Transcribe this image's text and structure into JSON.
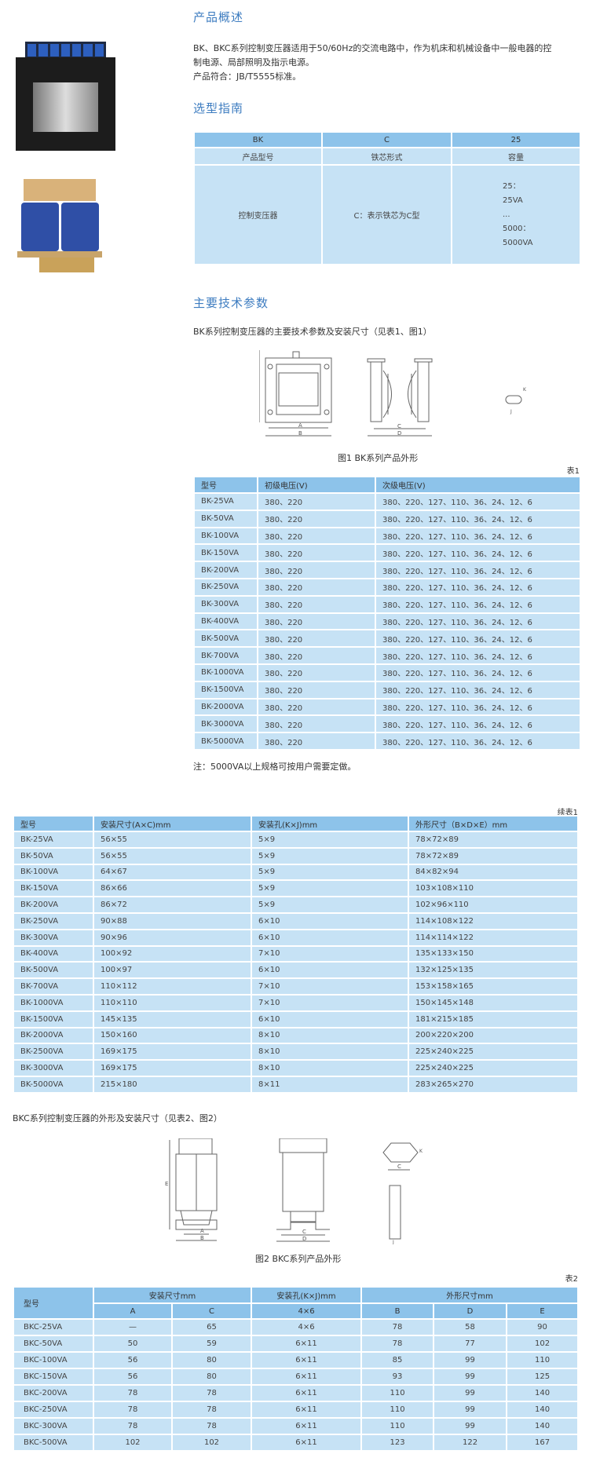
{
  "overview": {
    "title": "产品概述",
    "lines": [
      "BK、BKC系列控制变压器适用于50/60Hz的交流电路中，作为机床和机械设备中一般电器的控",
      "制电源、局部照明及指示电源。",
      "产品符合：JB/T5555标准。"
    ]
  },
  "selection": {
    "title": "选型指南",
    "codes": [
      "BK",
      "C",
      "25"
    ],
    "labels": [
      "产品型号",
      "铁芯形式",
      "容量"
    ],
    "desc": [
      "控制变压器",
      "C：表示铁芯为C型"
    ],
    "capacity": [
      "25：",
      "25VA",
      "...",
      "5000：",
      "5000VA"
    ]
  },
  "params": {
    "title": "主要技术参数",
    "subtitle": "BK系列控制变压器的主要技术参数及安装尺寸（见表1、图1）",
    "fig_caption": "图1  BK系列产品外形",
    "fig_labels": [
      "A",
      "B",
      "C",
      "D",
      "E",
      "K",
      "J"
    ]
  },
  "table1": {
    "label": "表1",
    "headers": [
      "型号",
      "初级电压(V)",
      "次级电压(V)"
    ],
    "rows": [
      [
        "BK-25VA",
        "380、220",
        "380、220、127、110、36、24、12、6"
      ],
      [
        "BK-50VA",
        "380、220",
        "380、220、127、110、36、24、12、6"
      ],
      [
        "BK-100VA",
        "380、220",
        "380、220、127、110、36、24、12、6"
      ],
      [
        "BK-150VA",
        "380、220",
        "380、220、127、110、36、24、12、6"
      ],
      [
        "BK-200VA",
        "380、220",
        "380、220、127、110、36、24、12、6"
      ],
      [
        "BK-250VA",
        "380、220",
        "380、220、127、110、36、24、12、6"
      ],
      [
        "BK-300VA",
        "380、220",
        "380、220、127、110、36、24、12、6"
      ],
      [
        "BK-400VA",
        "380、220",
        "380、220、127、110、36、24、12、6"
      ],
      [
        "BK-500VA",
        "380、220",
        "380、220、127、110、36、24、12、6"
      ],
      [
        "BK-700VA",
        "380、220",
        "380、220、127、110、36、24、12、6"
      ],
      [
        "BK-1000VA",
        "380、220",
        "380、220、127、110、36、24、12、6"
      ],
      [
        "BK-1500VA",
        "380、220",
        "380、220、127、110、36、24、12、6"
      ],
      [
        "BK-2000VA",
        "380、220",
        "380、220、127、110、36、24、12、6"
      ],
      [
        "BK-3000VA",
        "380、220",
        "380、220、127、110、36、24、12、6"
      ],
      [
        "BK-5000VA",
        "380、220",
        "380、220、127、110、36、24、12、6"
      ]
    ],
    "note": "注：5000VA以上规格可按用户需要定做。"
  },
  "table1b": {
    "label": "续表1",
    "headers": [
      "型号",
      "安装尺寸(A×C)mm",
      "安装孔(K×J)mm",
      "外形尺寸（B×D×E）mm"
    ],
    "rows": [
      [
        "BK-25VA",
        "56×55",
        "5×9",
        "78×72×89"
      ],
      [
        "BK-50VA",
        "56×55",
        "5×9",
        "78×72×89"
      ],
      [
        "BK-100VA",
        "64×67",
        "5×9",
        "84×82×94"
      ],
      [
        "BK-150VA",
        "86×66",
        "5×9",
        "103×108×110"
      ],
      [
        "BK-200VA",
        "86×72",
        "5×9",
        "102×96×110"
      ],
      [
        "BK-250VA",
        "90×88",
        "6×10",
        "114×108×122"
      ],
      [
        "BK-300VA",
        "90×96",
        "6×10",
        "114×114×122"
      ],
      [
        "BK-400VA",
        "100×92",
        "7×10",
        "135×133×150"
      ],
      [
        "BK-500VA",
        "100×97",
        "6×10",
        "132×125×135"
      ],
      [
        "BK-700VA",
        "110×112",
        "7×10",
        "153×158×165"
      ],
      [
        "BK-1000VA",
        "110×110",
        "7×10",
        "150×145×148"
      ],
      [
        "BK-1500VA",
        "145×135",
        "6×10",
        "181×215×185"
      ],
      [
        "BK-2000VA",
        "150×160",
        "8×10",
        "200×220×200"
      ],
      [
        "BK-2500VA",
        "169×175",
        "8×10",
        "225×240×225"
      ],
      [
        "BK-3000VA",
        "169×175",
        "8×10",
        "225×240×225"
      ],
      [
        "BK-5000VA",
        "215×180",
        "8×11",
        "283×265×270"
      ]
    ]
  },
  "bkc": {
    "subtitle": "BKC系列控制变压器的外形及安装尺寸（见表2、图2）",
    "fig_caption": "图2  BKC系列产品外形"
  },
  "table2": {
    "label": "表2",
    "group_headers": [
      "型号",
      "安装尺寸mm",
      "安装孔(K×J)mm",
      "外形尺寸mm"
    ],
    "sub_headers": [
      "A",
      "C",
      "4×6",
      "B",
      "D",
      "E"
    ],
    "rows": [
      [
        "BKC-25VA",
        "—",
        "65",
        "4×6",
        "78",
        "58",
        "90"
      ],
      [
        "BKC-50VA",
        "50",
        "59",
        "6×11",
        "78",
        "77",
        "102"
      ],
      [
        "BKC-100VA",
        "56",
        "80",
        "6×11",
        "85",
        "99",
        "110"
      ],
      [
        "BKC-150VA",
        "56",
        "80",
        "6×11",
        "93",
        "99",
        "125"
      ],
      [
        "BKC-200VA",
        "78",
        "78",
        "6×11",
        "110",
        "99",
        "140"
      ],
      [
        "BKC-250VA",
        "78",
        "78",
        "6×11",
        "110",
        "99",
        "140"
      ],
      [
        "BKC-300VA",
        "78",
        "78",
        "6×11",
        "110",
        "99",
        "140"
      ],
      [
        "BKC-500VA",
        "102",
        "102",
        "6×11",
        "123",
        "122",
        "167"
      ]
    ]
  },
  "colors": {
    "heading": "#3d7cc0",
    "table_header": "#8dc3ea",
    "table_body": "#c6e2f5"
  }
}
